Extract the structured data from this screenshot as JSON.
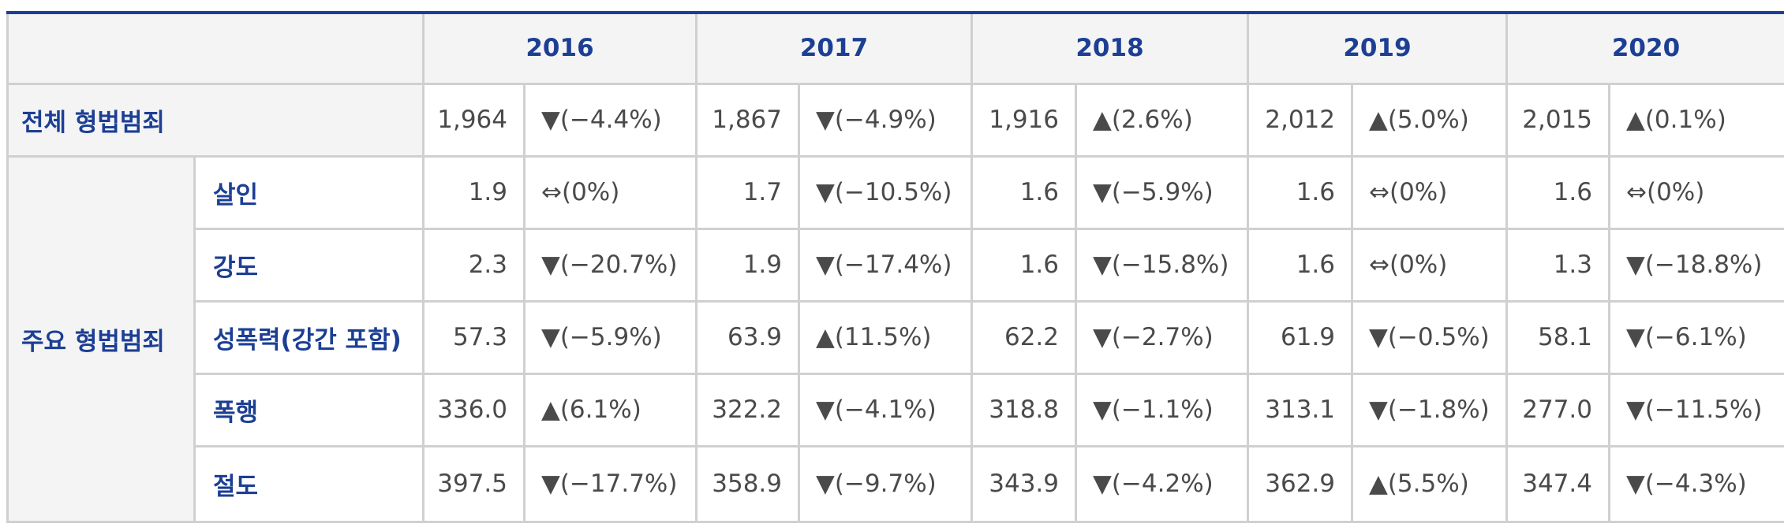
{
  "years": [
    "2016",
    "2017",
    "2018",
    "2019",
    "2020"
  ],
  "total_row": {
    "label": "전체 형법범죄",
    "cells": [
      {
        "value": "1,964",
        "change": "▼(−4.4%)"
      },
      {
        "value": "1,867",
        "change": "▼(−4.9%)"
      },
      {
        "value": "1,916",
        "change": "▲(2.6%)"
      },
      {
        "value": "2,012",
        "change": "▲(5.0%)"
      },
      {
        "value": "2,015",
        "change": "▲(0.1%)"
      }
    ]
  },
  "major_group_label": "주요 형법범죄",
  "major_rows": [
    {
      "label": "살인",
      "cells": [
        {
          "value": "1.9",
          "change": "⇔(0%)"
        },
        {
          "value": "1.7",
          "change": "▼(−10.5%)"
        },
        {
          "value": "1.6",
          "change": "▼(−5.9%)"
        },
        {
          "value": "1.6",
          "change": "⇔(0%)"
        },
        {
          "value": "1.6",
          "change": "⇔(0%)"
        }
      ]
    },
    {
      "label": "강도",
      "cells": [
        {
          "value": "2.3",
          "change": "▼(−20.7%)"
        },
        {
          "value": "1.9",
          "change": "▼(−17.4%)"
        },
        {
          "value": "1.6",
          "change": "▼(−15.8%)"
        },
        {
          "value": "1.6",
          "change": "⇔(0%)"
        },
        {
          "value": "1.3",
          "change": "▼(−18.8%)"
        }
      ]
    },
    {
      "label": "성폭력(강간 포함)",
      "cells": [
        {
          "value": "57.3",
          "change": "▼(−5.9%)"
        },
        {
          "value": "63.9",
          "change": "▲(11.5%)"
        },
        {
          "value": "62.2",
          "change": "▼(−2.7%)"
        },
        {
          "value": "61.9",
          "change": "▼(−0.5%)"
        },
        {
          "value": "58.1",
          "change": "▼(−6.1%)"
        }
      ]
    },
    {
      "label": "폭행",
      "cells": [
        {
          "value": "336.0",
          "change": "▲(6.1%)"
        },
        {
          "value": "322.2",
          "change": "▼(−4.1%)"
        },
        {
          "value": "318.8",
          "change": "▼(−1.1%)"
        },
        {
          "value": "313.1",
          "change": "▼(−1.8%)"
        },
        {
          "value": "277.0",
          "change": "▼(−11.5%)"
        }
      ]
    },
    {
      "label": "절도",
      "cells": [
        {
          "value": "397.5",
          "change": "▼(−17.7%)"
        },
        {
          "value": "358.9",
          "change": "▼(−9.7%)"
        },
        {
          "value": "343.9",
          "change": "▼(−4.2%)"
        },
        {
          "value": "362.9",
          "change": "▲(5.5%)"
        },
        {
          "value": "347.4",
          "change": "▼(−4.3%)"
        }
      ]
    }
  ],
  "colors": {
    "header_text": "#1c3f94",
    "top_border": "#1c3f94",
    "grid": "#d0d0d0",
    "header_bg": "#f4f4f4",
    "value_text": "#4a4a4a"
  }
}
